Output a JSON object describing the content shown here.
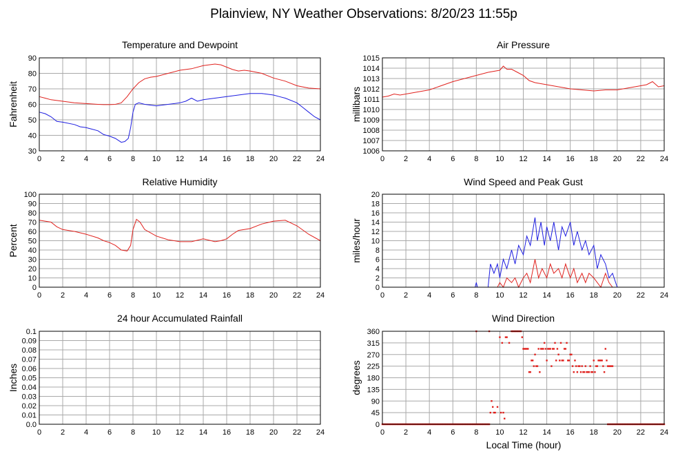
{
  "title": "Plainview, NY Weather Observations: 8/20/23 11:55p",
  "xlabel": "Local Time (hour)",
  "chart_data": [
    {
      "id": "temp",
      "type": "line",
      "title": "Temperature and Dewpoint",
      "ylabel": "Fahrenheit",
      "xlim": [
        0,
        24
      ],
      "ylim": [
        30,
        90
      ],
      "xticks": [
        0,
        2,
        4,
        6,
        8,
        10,
        12,
        14,
        16,
        18,
        20,
        22,
        24
      ],
      "yticks": [
        30,
        40,
        50,
        60,
        70,
        80,
        90
      ],
      "grid": true,
      "series": [
        {
          "color": "#e0201c",
          "x": [
            0,
            0.5,
            1,
            2,
            3,
            4,
            5,
            5.5,
            6,
            6.5,
            7,
            7.5,
            8,
            8.5,
            9,
            9.5,
            10,
            11,
            12,
            13,
            14,
            14.5,
            15,
            15.5,
            16,
            16.5,
            17,
            17.5,
            18,
            19,
            20,
            21,
            22,
            23,
            24
          ],
          "y": [
            65,
            64,
            63,
            62,
            61,
            60.5,
            60,
            59.8,
            59.8,
            60,
            61,
            65,
            70,
            74,
            76.5,
            77.5,
            78,
            80,
            82,
            83,
            85,
            85.5,
            86,
            85.5,
            84,
            82.5,
            81.5,
            82,
            81.5,
            80,
            77,
            75,
            72,
            70.5,
            70
          ]
        },
        {
          "color": "#1c1ce0",
          "x": [
            0,
            0.5,
            1,
            1.5,
            2,
            3,
            3.5,
            4,
            5,
            5.5,
            6,
            6.5,
            7,
            7.3,
            7.6,
            7.8,
            8,
            8.2,
            8.5,
            9,
            10,
            11,
            12,
            12.5,
            13,
            13.5,
            14,
            15,
            16,
            17,
            18,
            19,
            20,
            20.5,
            21,
            22,
            22.5,
            23,
            23.5,
            24
          ],
          "y": [
            55,
            54,
            52,
            49,
            48.5,
            47,
            45.5,
            45,
            43,
            40.5,
            39.5,
            38,
            35.5,
            36,
            38,
            45,
            55,
            60,
            61,
            60,
            59,
            60,
            61,
            62,
            64,
            62,
            63,
            64,
            65,
            66,
            67,
            67,
            66,
            65,
            64,
            61,
            58,
            55,
            52,
            50
          ]
        }
      ]
    },
    {
      "id": "pressure",
      "type": "line",
      "title": "Air Pressure",
      "ylabel": "millibars",
      "xlim": [
        0,
        24
      ],
      "ylim": [
        1006,
        1015
      ],
      "xticks": [
        0,
        2,
        4,
        6,
        8,
        10,
        12,
        14,
        16,
        18,
        20,
        22,
        24
      ],
      "yticks": [
        1006,
        1007,
        1008,
        1009,
        1010,
        1011,
        1012,
        1013,
        1014,
        1015
      ],
      "grid": true,
      "series": [
        {
          "color": "#e0201c",
          "x": [
            0,
            0.5,
            1,
            1.5,
            2,
            3,
            4,
            5,
            6,
            7,
            8,
            9,
            10,
            10.3,
            10.6,
            11,
            11.5,
            12,
            12.5,
            13,
            14,
            15,
            16,
            17,
            18,
            19,
            20,
            21,
            22,
            22.5,
            23,
            23.5,
            24
          ],
          "y": [
            1011.2,
            1011.3,
            1011.5,
            1011.4,
            1011.5,
            1011.7,
            1011.9,
            1012.3,
            1012.7,
            1013.0,
            1013.3,
            1013.6,
            1013.8,
            1014.2,
            1013.9,
            1013.9,
            1013.6,
            1013.3,
            1012.8,
            1012.6,
            1012.4,
            1012.2,
            1012.0,
            1011.9,
            1011.8,
            1011.9,
            1011.9,
            1012.1,
            1012.3,
            1012.4,
            1012.7,
            1012.2,
            1012.3
          ]
        }
      ]
    },
    {
      "id": "humidity",
      "type": "line",
      "title": "Relative Humidity",
      "ylabel": "Percent",
      "xlim": [
        0,
        24
      ],
      "ylim": [
        0,
        100
      ],
      "xticks": [
        0,
        2,
        4,
        6,
        8,
        10,
        12,
        14,
        16,
        18,
        20,
        22,
        24
      ],
      "yticks": [
        0,
        10,
        20,
        30,
        40,
        50,
        60,
        70,
        80,
        90,
        100
      ],
      "grid": true,
      "series": [
        {
          "color": "#e0201c",
          "x": [
            0,
            0.5,
            1,
            1.5,
            2,
            3,
            4,
            5,
            5.5,
            6,
            6.5,
            7,
            7.5,
            7.8,
            8,
            8.3,
            8.6,
            9,
            10,
            11,
            12,
            13,
            14,
            15,
            15.5,
            16,
            16.5,
            17,
            18,
            19,
            20,
            21,
            22,
            23,
            24
          ],
          "y": [
            72,
            71,
            70,
            65,
            62,
            60,
            57,
            53,
            50,
            48,
            45,
            40,
            39,
            45,
            62,
            73,
            70,
            62,
            55,
            51,
            49,
            49,
            52,
            49,
            50,
            52,
            57,
            61,
            63,
            68,
            71,
            72,
            66,
            57,
            50
          ]
        }
      ]
    },
    {
      "id": "wind",
      "type": "line",
      "title": "Wind Speed and Peak Gust",
      "ylabel": "miles/hour",
      "xlim": [
        0,
        24
      ],
      "ylim": [
        0,
        20
      ],
      "xticks": [
        0,
        2,
        4,
        6,
        8,
        10,
        12,
        14,
        16,
        18,
        20,
        22,
        24
      ],
      "yticks": [
        0,
        2,
        4,
        6,
        8,
        10,
        12,
        14,
        16,
        18,
        20
      ],
      "grid": true,
      "series": [
        {
          "color": "#1c1ce0",
          "x": [
            0,
            7.9,
            8,
            8.1,
            9,
            9.2,
            9.5,
            9.8,
            10,
            10.3,
            10.6,
            11,
            11.3,
            11.6,
            12,
            12.3,
            12.6,
            13,
            13.2,
            13.5,
            13.8,
            14,
            14.3,
            14.6,
            15,
            15.3,
            15.6,
            16,
            16.3,
            16.6,
            17,
            17.3,
            17.6,
            18,
            18.3,
            18.6,
            19,
            19.3,
            19.6,
            20,
            24
          ],
          "y": [
            0,
            0,
            1,
            0,
            0,
            5,
            3,
            5,
            2,
            6,
            4,
            8,
            5,
            9,
            7,
            11,
            9,
            15,
            10,
            14,
            9,
            13,
            10,
            14,
            8,
            13,
            11,
            14,
            9,
            12,
            8,
            10,
            7,
            9,
            4,
            7,
            5,
            2,
            3,
            0,
            0
          ]
        },
        {
          "color": "#e0201c",
          "x": [
            0,
            9.8,
            10,
            10.3,
            10.6,
            11,
            11.3,
            11.6,
            12,
            12.3,
            12.6,
            13,
            13.3,
            13.6,
            14,
            14.3,
            14.6,
            15,
            15.3,
            15.6,
            16,
            16.3,
            16.6,
            17,
            17.3,
            17.6,
            18,
            18.3,
            18.6,
            19,
            19.3,
            19.6,
            24
          ],
          "y": [
            0,
            0,
            1,
            0,
            2,
            1,
            2,
            0,
            2,
            3,
            1,
            6,
            2,
            4,
            2,
            5,
            3,
            4,
            2,
            5,
            2,
            4,
            1,
            3,
            1,
            3,
            2,
            1,
            0,
            3,
            1,
            0,
            0
          ]
        }
      ]
    },
    {
      "id": "rain",
      "type": "line",
      "title": "24 hour Accumulated Rainfall",
      "ylabel": "Inches",
      "xlim": [
        0,
        24
      ],
      "ylim": [
        0,
        0.1
      ],
      "xticks": [
        0,
        2,
        4,
        6,
        8,
        10,
        12,
        14,
        16,
        18,
        20,
        22,
        24
      ],
      "yticks": [
        0.0,
        0.01,
        0.02,
        0.03,
        0.04,
        0.05,
        0.06,
        0.07,
        0.08,
        0.09,
        0.1
      ],
      "ytick_labels": [
        "0.0",
        "0.01",
        "0.02",
        "0.03",
        "0.04",
        "0.05",
        "0.06",
        "0.07",
        "0.08",
        "0.09",
        "0.1"
      ],
      "grid": true,
      "series": [
        {
          "color": "#e0201c",
          "x": [
            0,
            24
          ],
          "y": [
            0,
            0
          ]
        }
      ]
    },
    {
      "id": "direction",
      "type": "scatter",
      "title": "Wind Direction",
      "ylabel": "degrees",
      "xlim": [
        0,
        24
      ],
      "ylim": [
        0,
        360
      ],
      "xticks": [
        0,
        2,
        4,
        6,
        8,
        10,
        12,
        14,
        16,
        18,
        20,
        22,
        24
      ],
      "yticks": [
        0,
        45,
        90,
        135,
        180,
        225,
        270,
        315,
        360
      ],
      "grid": true,
      "series": [
        {
          "color": "#e0201c",
          "baseline": {
            "y": 0,
            "ranges": [
              [
                0,
                9.1
              ],
              [
                19.2,
                24
              ]
            ],
            "step": 0.1
          },
          "x": [
            8.0,
            9.1,
            9.2,
            9.3,
            9.4,
            9.5,
            9.6,
            9.8,
            10.0,
            10.1,
            10.2,
            10.3,
            10.4,
            10.5,
            10.6,
            10.8,
            11.0,
            11.1,
            11.2,
            11.3,
            11.4,
            11.5,
            11.6,
            11.7,
            11.8,
            11.9,
            12.0,
            12.1,
            12.2,
            12.3,
            12.4,
            12.5,
            12.6,
            12.7,
            12.8,
            12.9,
            13.0,
            13.1,
            13.2,
            13.3,
            13.4,
            13.5,
            13.6,
            13.7,
            13.8,
            13.9,
            14.0,
            14.1,
            14.2,
            14.3,
            14.4,
            14.5,
            14.6,
            14.7,
            14.8,
            14.9,
            15.0,
            15.1,
            15.2,
            15.3,
            15.4,
            15.5,
            15.6,
            15.7,
            15.8,
            15.9,
            16.0,
            16.1,
            16.2,
            16.3,
            16.4,
            16.5,
            16.6,
            16.7,
            16.8,
            16.9,
            17.0,
            17.1,
            17.2,
            17.3,
            17.4,
            17.5,
            17.6,
            17.7,
            17.8,
            17.9,
            18.0,
            18.1,
            18.2,
            18.3,
            18.4,
            18.5,
            18.6,
            18.7,
            18.8,
            18.9,
            19.0,
            19.1,
            19.2,
            19.3,
            19.4,
            19.5,
            19.6
          ],
          "y": [
            360,
            360,
            45,
            90,
            67,
            45,
            45,
            67,
            337,
            45,
            315,
            45,
            22,
            337,
            337,
            315,
            360,
            360,
            360,
            360,
            360,
            360,
            360,
            360,
            360,
            337,
            292,
            292,
            292,
            292,
            292,
            202,
            202,
            247,
            247,
            225,
            270,
            225,
            225,
            292,
            202,
            292,
            292,
            292,
            315,
            292,
            247,
            292,
            292,
            292,
            225,
            292,
            292,
            315,
            247,
            292,
            270,
            247,
            315,
            247,
            247,
            292,
            292,
            315,
            247,
            247,
            270,
            270,
            225,
            202,
            247,
            225,
            202,
            225,
            225,
            202,
            225,
            202,
            202,
            225,
            202,
            202,
            202,
            225,
            202,
            202,
            247,
            202,
            225,
            225,
            247,
            247,
            247,
            247,
            225,
            202,
            292,
            247,
            225,
            225,
            225,
            225,
            225
          ]
        }
      ]
    }
  ]
}
